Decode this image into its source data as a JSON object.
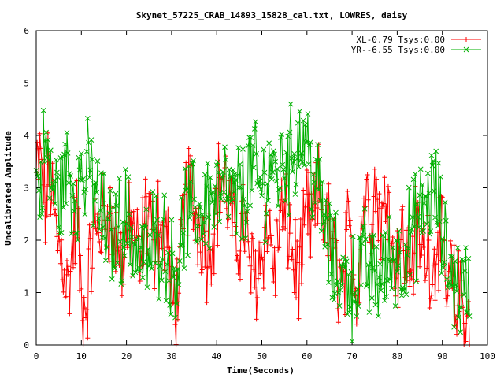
{
  "chart_data": {
    "type": "line",
    "title": "Skynet_57225_CRAB_14893_15828_cal.txt, LOWRES, daisy",
    "xlabel": "Time(Seconds)",
    "ylabel": "Uncalibrated Amplitude",
    "xlim": [
      0,
      100
    ],
    "ylim": [
      0,
      6
    ],
    "x_ticks": [
      "0",
      "10",
      "20",
      "30",
      "40",
      "50",
      "60",
      "70",
      "80",
      "90",
      "100"
    ],
    "y_ticks": [
      "0",
      "1",
      "2",
      "3",
      "4",
      "5",
      "6"
    ],
    "grid": false,
    "legend_position": "top-right",
    "sample_spacing": 0.2,
    "series": [
      {
        "name": "XL-0.79 Tsys:0.00",
        "color": "#ff0000",
        "marker": "plus",
        "x": [
          0,
          1,
          2,
          3,
          4,
          5,
          6,
          7,
          8,
          9,
          10,
          11,
          12,
          13,
          14,
          15,
          16,
          17,
          18,
          19,
          20,
          21,
          22,
          23,
          24,
          25,
          26,
          27,
          28,
          29,
          30,
          31,
          32,
          33,
          34,
          35,
          36,
          37,
          38,
          39,
          40,
          41,
          42,
          43,
          44,
          45,
          46,
          47,
          48,
          49,
          50,
          51,
          52,
          53,
          54,
          55,
          56,
          57,
          58,
          59,
          60,
          61,
          62,
          63,
          64,
          65,
          66,
          67,
          68,
          69,
          70,
          71,
          72,
          73,
          74,
          75,
          76,
          77,
          78,
          79,
          80,
          81,
          82,
          83,
          84,
          85,
          86,
          87,
          88,
          89,
          90,
          91,
          92,
          93,
          94,
          95,
          96
        ],
        "y": [
          3.2,
          3.5,
          2.6,
          3.4,
          2.3,
          1.9,
          1.7,
          1.0,
          1.8,
          2.5,
          0.8,
          0.7,
          1.6,
          2.2,
          2.3,
          2.4,
          2.6,
          2.1,
          2.0,
          1.6,
          2.0,
          2.1,
          2.2,
          1.3,
          2.4,
          2.6,
          1.8,
          2.6,
          1.9,
          2.2,
          0.6,
          1.0,
          1.4,
          2.8,
          3.1,
          2.5,
          2.4,
          2.2,
          1.8,
          2.2,
          2.7,
          3.3,
          2.9,
          2.6,
          1.9,
          2.1,
          2.5,
          1.7,
          1.3,
          1.4,
          1.9,
          2.3,
          2.0,
          1.4,
          2.6,
          2.2,
          2.3,
          1.6,
          1.4,
          1.6,
          2.6,
          2.2,
          2.6,
          3.0,
          2.4,
          2.1,
          1.6,
          1.4,
          1.0,
          2.0,
          1.8,
          1.0,
          2.3,
          2.9,
          2.5,
          3.0,
          2.6,
          2.3,
          3.3,
          1.5,
          1.7,
          2.1,
          1.6,
          1.5,
          2.1,
          1.8,
          1.8,
          1.9,
          1.3,
          2.3,
          1.7,
          0.9,
          1.4,
          0.6,
          1.2,
          0.5,
          0.3
        ]
      },
      {
        "name": "YR--6.55 Tsys:0.00",
        "color": "#00b000",
        "marker": "x",
        "x": [
          0,
          1,
          2,
          3,
          4,
          5,
          6,
          7,
          8,
          9,
          10,
          11,
          12,
          13,
          14,
          15,
          16,
          17,
          18,
          19,
          20,
          21,
          22,
          23,
          24,
          25,
          26,
          27,
          28,
          29,
          30,
          31,
          32,
          33,
          34,
          35,
          36,
          37,
          38,
          39,
          40,
          41,
          42,
          43,
          44,
          45,
          46,
          47,
          48,
          49,
          50,
          51,
          52,
          53,
          54,
          55,
          56,
          57,
          58,
          59,
          60,
          61,
          62,
          63,
          64,
          65,
          66,
          67,
          68,
          69,
          70,
          71,
          72,
          73,
          74,
          75,
          76,
          77,
          78,
          79,
          80,
          81,
          82,
          83,
          84,
          85,
          86,
          87,
          88,
          89,
          90,
          91,
          92,
          93,
          94,
          95,
          96
        ],
        "y": [
          3.1,
          3.0,
          3.9,
          3.2,
          3.0,
          2.8,
          3.1,
          3.4,
          3.0,
          2.9,
          3.3,
          3.1,
          3.4,
          2.9,
          2.6,
          2.3,
          2.0,
          2.1,
          2.3,
          2.2,
          2.5,
          2.1,
          1.9,
          1.6,
          1.8,
          1.6,
          2.1,
          1.9,
          2.2,
          1.7,
          1.4,
          1.6,
          1.7,
          2.6,
          2.4,
          2.6,
          2.5,
          2.6,
          2.8,
          2.7,
          2.9,
          2.7,
          3.0,
          2.8,
          2.6,
          3.0,
          2.8,
          3.2,
          3.4,
          3.1,
          2.9,
          3.2,
          3.5,
          3.2,
          3.3,
          3.6,
          3.5,
          3.7,
          3.9,
          4.0,
          3.9,
          3.4,
          3.0,
          2.8,
          2.2,
          1.8,
          1.4,
          1.5,
          1.2,
          1.4,
          1.1,
          1.3,
          1.5,
          1.6,
          1.2,
          1.4,
          1.3,
          1.4,
          1.5,
          1.7,
          1.7,
          1.6,
          1.9,
          2.0,
          2.3,
          2.4,
          2.6,
          2.8,
          3.0,
          2.7,
          2.0,
          1.6,
          1.4,
          1.2,
          1.0,
          1.1,
          1.2
        ]
      }
    ]
  }
}
